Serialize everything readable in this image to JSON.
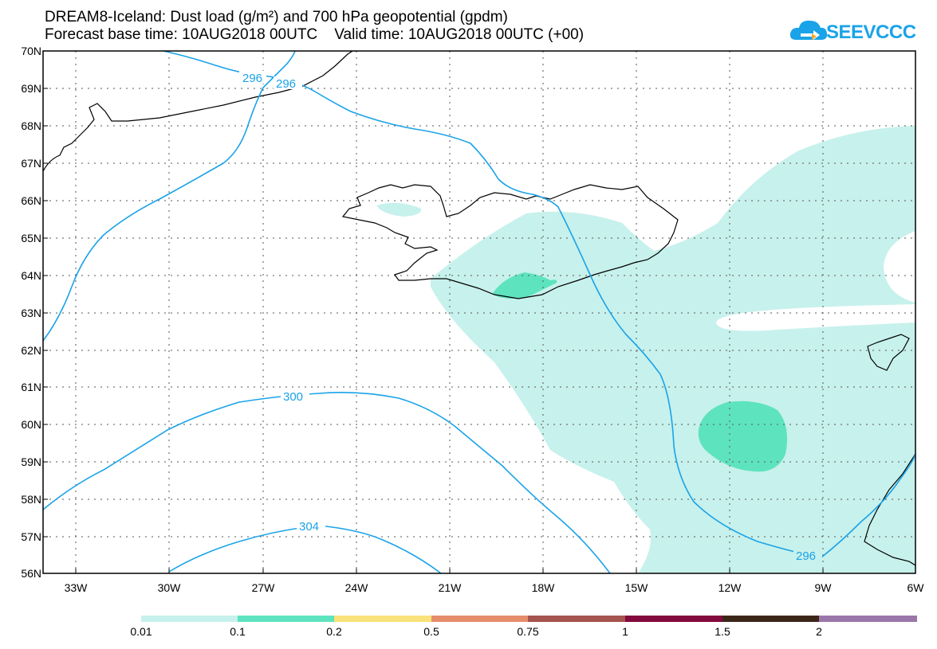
{
  "title_line1": "DREAM8-Iceland: Dust load (g/m²) and 700 hPa geopotential (gpdm)",
  "title_line2": "Forecast base time: 10AUG2018 00UTC    Valid time: 10AUG2018 00UTC (+00)",
  "logo_text": "SEEVCCC",
  "logo_icon": "cloud-arrow-icon",
  "lat_labels": [
    "70N",
    "69N",
    "68N",
    "67N",
    "66N",
    "65N",
    "64N",
    "63N",
    "62N",
    "61N",
    "60N",
    "59N",
    "58N",
    "57N",
    "56N"
  ],
  "lon_labels": [
    "33W",
    "30W",
    "27W",
    "24W",
    "21W",
    "18W",
    "15W",
    "12W",
    "9W",
    "6W"
  ],
  "contour_labels": [
    "296",
    "296",
    "300",
    "304",
    "296"
  ],
  "colorbar": {
    "labels": [
      "0.01",
      "0.1",
      "0.2",
      "0.5",
      "0.75",
      "1",
      "1.5",
      "2"
    ],
    "colors": [
      "#c7f1ec",
      "#5ee3bf",
      "#f9e27a",
      "#e58e6b",
      "#a5544f",
      "#820a3c",
      "#3c2619",
      "#9b76ab"
    ]
  },
  "colors": {
    "contour": "#1aa3e8",
    "dust_low": "#c7f1ec",
    "dust_mid": "#5ee3bf",
    "coast": "#000000"
  }
}
